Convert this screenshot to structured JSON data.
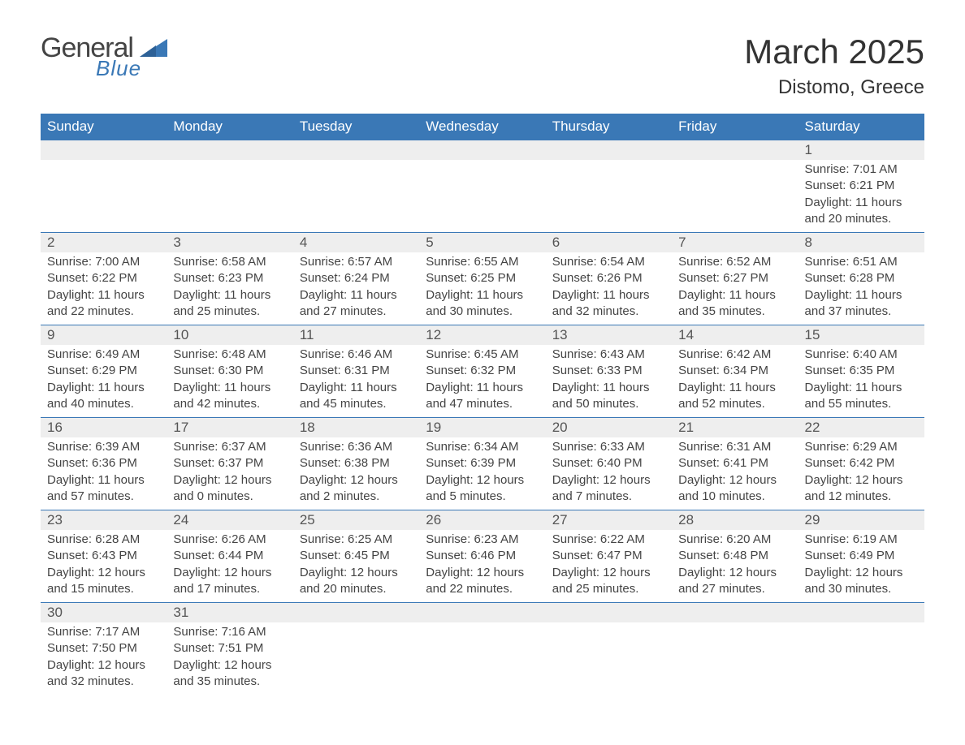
{
  "brand": {
    "name1": "General",
    "name2": "Blue",
    "accent_color": "#3a78b6"
  },
  "title": "March 2025",
  "location": "Distomo, Greece",
  "day_headers": [
    "Sunday",
    "Monday",
    "Tuesday",
    "Wednesday",
    "Thursday",
    "Friday",
    "Saturday"
  ],
  "header_bg": "#3a78b6",
  "header_fg": "#ffffff",
  "daybar_bg": "#eeeeee",
  "row_border_color": "#3a78b6",
  "text_color": "#3a3a3a",
  "label_sunrise": "Sunrise: ",
  "label_sunset": "Sunset: ",
  "label_daylight1": "Daylight: ",
  "label_daylight2_prefix": "and ",
  "weeks": [
    [
      null,
      null,
      null,
      null,
      null,
      null,
      {
        "d": "1",
        "sr": "7:01 AM",
        "ss": "6:21 PM",
        "dl1": "11 hours",
        "dl2": "20 minutes."
      }
    ],
    [
      {
        "d": "2",
        "sr": "7:00 AM",
        "ss": "6:22 PM",
        "dl1": "11 hours",
        "dl2": "22 minutes."
      },
      {
        "d": "3",
        "sr": "6:58 AM",
        "ss": "6:23 PM",
        "dl1": "11 hours",
        "dl2": "25 minutes."
      },
      {
        "d": "4",
        "sr": "6:57 AM",
        "ss": "6:24 PM",
        "dl1": "11 hours",
        "dl2": "27 minutes."
      },
      {
        "d": "5",
        "sr": "6:55 AM",
        "ss": "6:25 PM",
        "dl1": "11 hours",
        "dl2": "30 minutes."
      },
      {
        "d": "6",
        "sr": "6:54 AM",
        "ss": "6:26 PM",
        "dl1": "11 hours",
        "dl2": "32 minutes."
      },
      {
        "d": "7",
        "sr": "6:52 AM",
        "ss": "6:27 PM",
        "dl1": "11 hours",
        "dl2": "35 minutes."
      },
      {
        "d": "8",
        "sr": "6:51 AM",
        "ss": "6:28 PM",
        "dl1": "11 hours",
        "dl2": "37 minutes."
      }
    ],
    [
      {
        "d": "9",
        "sr": "6:49 AM",
        "ss": "6:29 PM",
        "dl1": "11 hours",
        "dl2": "40 minutes."
      },
      {
        "d": "10",
        "sr": "6:48 AM",
        "ss": "6:30 PM",
        "dl1": "11 hours",
        "dl2": "42 minutes."
      },
      {
        "d": "11",
        "sr": "6:46 AM",
        "ss": "6:31 PM",
        "dl1": "11 hours",
        "dl2": "45 minutes."
      },
      {
        "d": "12",
        "sr": "6:45 AM",
        "ss": "6:32 PM",
        "dl1": "11 hours",
        "dl2": "47 minutes."
      },
      {
        "d": "13",
        "sr": "6:43 AM",
        "ss": "6:33 PM",
        "dl1": "11 hours",
        "dl2": "50 minutes."
      },
      {
        "d": "14",
        "sr": "6:42 AM",
        "ss": "6:34 PM",
        "dl1": "11 hours",
        "dl2": "52 minutes."
      },
      {
        "d": "15",
        "sr": "6:40 AM",
        "ss": "6:35 PM",
        "dl1": "11 hours",
        "dl2": "55 minutes."
      }
    ],
    [
      {
        "d": "16",
        "sr": "6:39 AM",
        "ss": "6:36 PM",
        "dl1": "11 hours",
        "dl2": "57 minutes."
      },
      {
        "d": "17",
        "sr": "6:37 AM",
        "ss": "6:37 PM",
        "dl1": "12 hours",
        "dl2": "0 minutes."
      },
      {
        "d": "18",
        "sr": "6:36 AM",
        "ss": "6:38 PM",
        "dl1": "12 hours",
        "dl2": "2 minutes."
      },
      {
        "d": "19",
        "sr": "6:34 AM",
        "ss": "6:39 PM",
        "dl1": "12 hours",
        "dl2": "5 minutes."
      },
      {
        "d": "20",
        "sr": "6:33 AM",
        "ss": "6:40 PM",
        "dl1": "12 hours",
        "dl2": "7 minutes."
      },
      {
        "d": "21",
        "sr": "6:31 AM",
        "ss": "6:41 PM",
        "dl1": "12 hours",
        "dl2": "10 minutes."
      },
      {
        "d": "22",
        "sr": "6:29 AM",
        "ss": "6:42 PM",
        "dl1": "12 hours",
        "dl2": "12 minutes."
      }
    ],
    [
      {
        "d": "23",
        "sr": "6:28 AM",
        "ss": "6:43 PM",
        "dl1": "12 hours",
        "dl2": "15 minutes."
      },
      {
        "d": "24",
        "sr": "6:26 AM",
        "ss": "6:44 PM",
        "dl1": "12 hours",
        "dl2": "17 minutes."
      },
      {
        "d": "25",
        "sr": "6:25 AM",
        "ss": "6:45 PM",
        "dl1": "12 hours",
        "dl2": "20 minutes."
      },
      {
        "d": "26",
        "sr": "6:23 AM",
        "ss": "6:46 PM",
        "dl1": "12 hours",
        "dl2": "22 minutes."
      },
      {
        "d": "27",
        "sr": "6:22 AM",
        "ss": "6:47 PM",
        "dl1": "12 hours",
        "dl2": "25 minutes."
      },
      {
        "d": "28",
        "sr": "6:20 AM",
        "ss": "6:48 PM",
        "dl1": "12 hours",
        "dl2": "27 minutes."
      },
      {
        "d": "29",
        "sr": "6:19 AM",
        "ss": "6:49 PM",
        "dl1": "12 hours",
        "dl2": "30 minutes."
      }
    ],
    [
      {
        "d": "30",
        "sr": "7:17 AM",
        "ss": "7:50 PM",
        "dl1": "12 hours",
        "dl2": "32 minutes."
      },
      {
        "d": "31",
        "sr": "7:16 AM",
        "ss": "7:51 PM",
        "dl1": "12 hours",
        "dl2": "35 minutes."
      },
      null,
      null,
      null,
      null,
      null
    ]
  ]
}
